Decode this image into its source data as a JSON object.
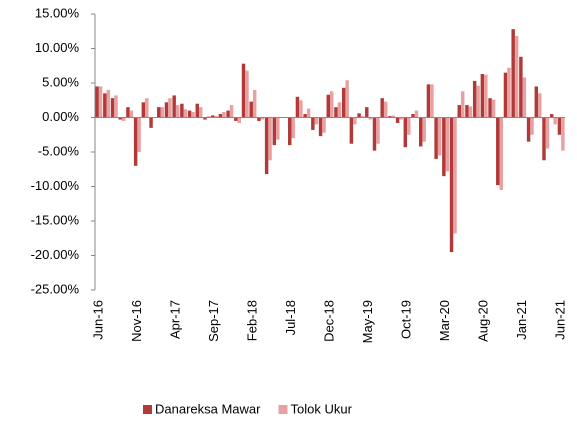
{
  "chart_data": {
    "type": "bar",
    "categories": [
      "Jun-16",
      null,
      null,
      null,
      null,
      "Nov-16",
      null,
      null,
      null,
      null,
      "Apr-17",
      null,
      null,
      null,
      null,
      "Sep-17",
      null,
      null,
      null,
      null,
      "Feb-18",
      null,
      null,
      null,
      null,
      "Jul-18",
      null,
      null,
      null,
      null,
      "Dec-18",
      null,
      null,
      null,
      null,
      "May-19",
      null,
      null,
      null,
      null,
      "Oct-19",
      null,
      null,
      null,
      null,
      "Mar-20",
      null,
      null,
      null,
      null,
      "Aug-20",
      null,
      null,
      null,
      null,
      "Jan-21",
      null,
      null,
      null,
      null,
      "Jun-21"
    ],
    "series": [
      {
        "name": "Danareksa Mawar",
        "color": "#b03a3a",
        "values": [
          4.5,
          3.5,
          2.8,
          -0.3,
          1.5,
          -7,
          2.2,
          -1.5,
          1.5,
          2.2,
          3.2,
          2,
          1,
          2,
          -0.3,
          0.3,
          0.5,
          1,
          -0.5,
          7.8,
          2.3,
          -0.5,
          -8.2,
          -4,
          0,
          -4,
          3,
          0.5,
          -1.8,
          -2.7,
          3.3,
          1.5,
          4.3,
          -3.8,
          0.6,
          1.5,
          -4.8,
          2.8,
          0.2,
          -0.8,
          -4.3,
          0.5,
          -4.2,
          4.8,
          -6,
          -8.5,
          -19.5,
          1.8,
          1.8,
          5.3,
          6.3,
          2.8,
          -9.8,
          6.5,
          12.8,
          8.8,
          -3.5,
          4.5,
          -6.2,
          0.5,
          -2.5
        ]
      },
      {
        "name": "Tolok Ukur",
        "color": "#e8a0a0",
        "values": [
          4.5,
          4,
          3.2,
          -0.5,
          1,
          -5,
          2.8,
          0,
          1.5,
          2.8,
          1.8,
          1.2,
          0.8,
          1.5,
          0.2,
          0.2,
          0.8,
          1.8,
          -0.8,
          6.8,
          4,
          -0.3,
          -6.2,
          -3.2,
          0,
          -3,
          2.5,
          1.3,
          -1,
          -2.2,
          3.8,
          2.2,
          5.4,
          -1,
          0.2,
          -0.3,
          -3.8,
          2.3,
          0.3,
          -0.3,
          -2.5,
          1,
          -3.5,
          4.8,
          -5.5,
          -7.8,
          -16.8,
          3.8,
          1.6,
          4.6,
          6.2,
          2.6,
          -10.5,
          7.2,
          11.8,
          5.8,
          -2.5,
          3.5,
          -4.5,
          -1,
          -4.8
        ]
      }
    ],
    "ylim": [
      -25,
      15
    ],
    "yticks": [
      {
        "value": 15,
        "label": "15.00%"
      },
      {
        "value": 10,
        "label": "10.00%"
      },
      {
        "value": 5,
        "label": "5.00%"
      },
      {
        "value": 0,
        "label": "0.00%"
      },
      {
        "value": -5,
        "label": "-5.00%"
      },
      {
        "value": -10,
        "label": "-10.00%"
      },
      {
        "value": -15,
        "label": "-15.00%"
      },
      {
        "value": -20,
        "label": "-20.00%"
      },
      {
        "value": -25,
        "label": "-25.00%"
      }
    ],
    "legend": "bottom"
  }
}
